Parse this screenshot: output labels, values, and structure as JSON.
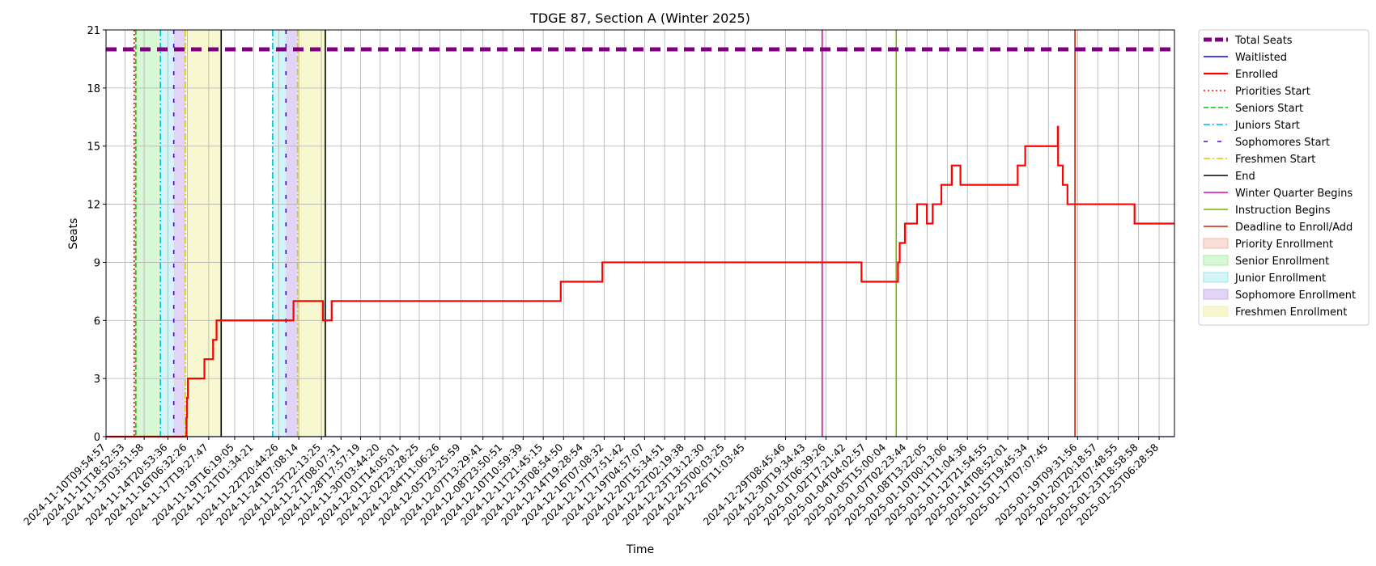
{
  "chart_data": {
    "type": "line",
    "title": "TDGE 87, Section A (Winter 2025)",
    "xlabel": "Time",
    "ylabel": "Seats",
    "xlim": [
      "2024-11-10T09:54:57",
      "2025-01-26T09:00:00"
    ],
    "ylim": [
      0,
      21
    ],
    "yticks": [
      0,
      3,
      6,
      9,
      12,
      15,
      18,
      21
    ],
    "grid": true,
    "legend_position": "outside right",
    "xticks": [
      "2024-11-10T09:54:57",
      "2024-11-11T18:52:53",
      "2024-11-13T03:51:58",
      "2024-11-14T20:53:36",
      "2024-11-16T06:32:26",
      "2024-11-17T19:27:47",
      "2024-11-19T16:19:05",
      "2024-11-21T01:34:21",
      "2024-11-22T20:44:26",
      "2024-11-24T07:08:14",
      "2024-11-25T22:13:25",
      "2024-11-27T08:07:31",
      "2024-11-28T17:57:19",
      "2024-11-30T03:44:20",
      "2024-12-01T14:05:01",
      "2024-12-02T23:28:25",
      "2024-12-04T11:06:26",
      "2024-12-05T23:25:59",
      "2024-12-07T13:29:41",
      "2024-12-08T23:50:51",
      "2024-12-10T10:59:39",
      "2024-12-11T21:45:15",
      "2024-12-13T08:54:50",
      "2024-12-14T19:28:54",
      "2024-12-16T07:08:32",
      "2024-12-17T17:51:42",
      "2024-12-19T04:57:07",
      "2024-12-20T15:34:51",
      "2024-12-22T02:19:38",
      "2024-12-23T13:12:30",
      "2024-12-25T00:03:25",
      "2024-12-26T11:03:45",
      "2024-12-29T08:45:46",
      "2024-12-30T19:34:43",
      "2025-01-01T06:39:26",
      "2025-01-02T17:21:42",
      "2025-01-04T04:02:57",
      "2025-01-05T15:00:04",
      "2025-01-07T02:23:44",
      "2025-01-08T13:22:05",
      "2025-01-10T00:13:06",
      "2025-01-11T11:04:36",
      "2025-01-12T21:54:55",
      "2025-01-14T08:52:01",
      "2025-01-15T19:45:34",
      "2025-01-17T07:07:45",
      "2025-01-19T09:31:56",
      "2025-01-20T20:18:57",
      "2025-01-22T07:48:55",
      "2025-01-23T18:58:58",
      "2025-01-25T06:28:58"
    ],
    "series": [
      {
        "name": "Total Seats",
        "color": "#800080",
        "style": "dashed-thick",
        "x": [
          "2024-11-10T09:54:57",
          "2025-01-26T09:00:00"
        ],
        "y": [
          20,
          20
        ]
      },
      {
        "name": "Waitlisted",
        "color": "#0000ff",
        "style": "solid",
        "x": [
          "2024-11-10T09:54:57",
          "2025-01-26T09:00:00"
        ],
        "y": [
          0,
          0
        ]
      },
      {
        "name": "Enrolled",
        "color": "#ff0000",
        "style": "step",
        "x": [
          "2024-11-10T09:54:57",
          "2024-11-16T05:00:00",
          "2024-11-16T06:00:00",
          "2024-11-16T07:30:00",
          "2024-11-16T23:00:00",
          "2024-11-17T12:00:00",
          "2024-11-18T03:00:00",
          "2024-11-18T09:00:00",
          "2024-11-22T22:00:00",
          "2024-11-23T22:00:00",
          "2024-11-24T02:00:00",
          "2024-11-24T04:00:00",
          "2024-11-26T01:00:00",
          "2024-11-26T16:00:00",
          "2024-12-13T04:00:00",
          "2024-12-16T04:00:00",
          "2025-01-03T20:00:00",
          "2025-01-06T11:00:00",
          "2025-01-06T14:00:00",
          "2025-01-06T23:00:00",
          "2025-01-07T20:00:00",
          "2025-01-08T09:00:00",
          "2025-01-08T13:00:00",
          "2025-01-08T23:00:00",
          "2025-01-09T14:00:00",
          "2025-01-10T08:00:00",
          "2025-01-10T23:00:00",
          "2025-01-11T17:00:00",
          "2025-01-15T02:00:00",
          "2025-01-15T15:00:00",
          "2025-01-17T23:20:00",
          "2025-01-17T23:50:00",
          "2025-01-18T08:00:00",
          "2025-01-18T16:00:00",
          "2025-01-23T12:00:00"
        ],
        "y": [
          0,
          1,
          2,
          3,
          3,
          4,
          5,
          6,
          6,
          7,
          7,
          7,
          6,
          7,
          8,
          9,
          8,
          9,
          10,
          11,
          12,
          12,
          11,
          12,
          13,
          14,
          13,
          13,
          14,
          15,
          16,
          14,
          13,
          12,
          11
        ]
      }
    ],
    "vertical_markers": [
      {
        "name": "Priorities Start",
        "color": "#ff0000",
        "style": "dotted",
        "x": [
          "2024-11-12T10:30:00"
        ]
      },
      {
        "name": "Seniors Start",
        "color": "#00cc00",
        "style": "dashed",
        "x": [
          "2024-11-12T13:30:00"
        ]
      },
      {
        "name": "Juniors Start",
        "color": "#00bcd4",
        "style": "dashdot",
        "x": [
          "2024-11-14T08:00:00",
          "2024-11-22T10:00:00"
        ]
      },
      {
        "name": "Sophomores Start",
        "color": "#5500cc",
        "style": "sparse-dash",
        "x": [
          "2024-11-15T07:00:00",
          "2024-11-23T09:00:00"
        ]
      },
      {
        "name": "Freshmen Start",
        "color": "#e0c800",
        "style": "dashdot",
        "x": [
          "2024-11-16T03:00:00",
          "2024-11-24T05:00:00"
        ]
      },
      {
        "name": "End",
        "color": "#000000",
        "style": "solid",
        "x": [
          "2024-11-18T17:00:00",
          "2024-11-26T05:00:00"
        ]
      },
      {
        "name": "Winter Quarter Begins",
        "color": "#e000b0",
        "style": "solid",
        "x": [
          "2025-01-01T00:00:00"
        ]
      },
      {
        "name": "Instruction Begins",
        "color": "#77b300",
        "style": "solid",
        "x": [
          "2025-01-06T08:00:00"
        ]
      },
      {
        "name": "Deadline to Enroll/Add",
        "color": "#cc2200",
        "style": "solid",
        "x": [
          "2025-01-19T05:00:00"
        ]
      }
    ],
    "shaded_regions": [
      {
        "name": "Priority Enrollment",
        "color": "#f4b8a8",
        "opacity": 0.45,
        "ranges": [
          [
            "2024-11-12T10:30:00",
            "2024-11-12T13:30:00"
          ]
        ]
      },
      {
        "name": "Senior Enrollment",
        "color": "#a8eea0",
        "opacity": 0.45,
        "ranges": [
          [
            "2024-11-12T13:30:00",
            "2024-11-14T08:00:00"
          ]
        ]
      },
      {
        "name": "Junior Enrollment",
        "color": "#9ee8ee",
        "opacity": 0.45,
        "ranges": [
          [
            "2024-11-14T08:00:00",
            "2024-11-15T07:00:00"
          ],
          [
            "2024-11-22T10:00:00",
            "2024-11-23T09:00:00"
          ]
        ]
      },
      {
        "name": "Sophomore Enrollment",
        "color": "#c8b0ee",
        "opacity": 0.55,
        "ranges": [
          [
            "2024-11-15T07:00:00",
            "2024-11-16T03:00:00"
          ],
          [
            "2024-11-23T09:00:00",
            "2024-11-24T05:00:00"
          ]
        ]
      },
      {
        "name": "Freshmen Enrollment",
        "color": "#f2f2b0",
        "opacity": 0.6,
        "ranges": [
          [
            "2024-11-16T03:00:00",
            "2024-11-18T17:00:00"
          ],
          [
            "2024-11-24T05:00:00",
            "2024-11-26T05:00:00"
          ]
        ]
      }
    ]
  }
}
